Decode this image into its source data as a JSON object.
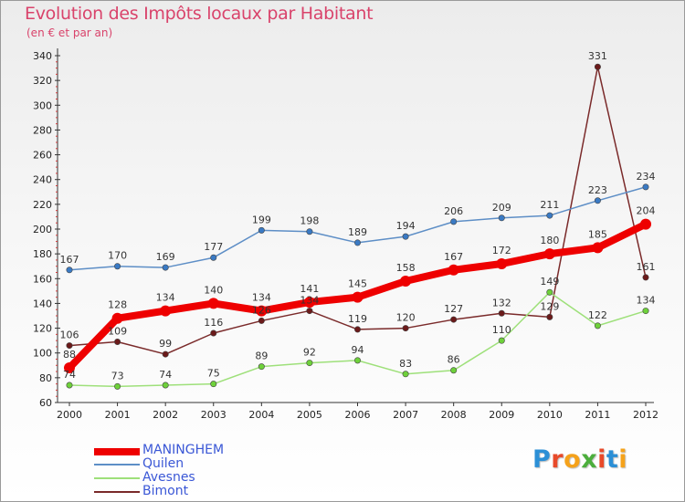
{
  "title": "Evolution des Impôts locaux par Habitant",
  "subtitle": "(en € et par an)",
  "logo": {
    "text": "Proxiti",
    "colors": [
      "#2b8fd6",
      "#e84a2a",
      "#f5a21b",
      "#4cae3c",
      "#e84a2a",
      "#2b8fd6",
      "#f5a21b"
    ]
  },
  "chart_data": {
    "type": "line",
    "title": "Evolution des Impôts locaux par Habitant",
    "subtitle": "(en € et par an)",
    "xlabel": "",
    "ylabel": "",
    "x": [
      "2000",
      "2001",
      "2002",
      "2003",
      "2004",
      "2005",
      "2006",
      "2007",
      "2008",
      "2009",
      "2010",
      "2011",
      "2012"
    ],
    "ylim": [
      60,
      340
    ],
    "yticks": [
      60,
      80,
      100,
      120,
      140,
      160,
      180,
      200,
      220,
      240,
      260,
      280,
      300,
      320,
      340
    ],
    "grid": false,
    "legend_position": "bottom-left",
    "series": [
      {
        "name": "MANINGHEM",
        "color": "#ee0000",
        "marker": "#ee0000",
        "values": [
          88,
          128,
          134,
          140,
          134,
          141,
          145,
          158,
          167,
          172,
          180,
          185,
          204
        ]
      },
      {
        "name": "Quilen",
        "color": "#5d8ec6",
        "marker": "#3a7ac4",
        "values": [
          167,
          170,
          169,
          177,
          199,
          198,
          189,
          194,
          206,
          209,
          211,
          223,
          234
        ]
      },
      {
        "name": "Avesnes",
        "color": "#9ee07a",
        "marker": "#6ed13a",
        "values": [
          74,
          73,
          74,
          75,
          89,
          92,
          94,
          83,
          86,
          110,
          149,
          122,
          134
        ]
      },
      {
        "name": "Bimont",
        "color": "#7a2a2a",
        "marker": "#6b1a1a",
        "values": [
          106,
          109,
          99,
          116,
          126,
          134,
          119,
          120,
          127,
          132,
          129,
          331,
          161
        ]
      }
    ],
    "labels": [
      [
        "88",
        "128",
        "134",
        "140",
        "134",
        "141",
        "145",
        "158",
        "167",
        "172",
        "180",
        "185",
        "204"
      ],
      [
        "167",
        "170",
        "169",
        "177",
        "199",
        "198",
        "189",
        "194",
        "206",
        "209",
        "211",
        "223",
        "234"
      ],
      [
        "74",
        "73",
        "74",
        "75",
        "89",
        "92",
        "94",
        "83",
        "86",
        "110",
        "149",
        "122",
        "134"
      ],
      [
        "106",
        "109",
        "99",
        "116",
        "126",
        "134",
        "119",
        "120",
        "127",
        "132",
        "129",
        "331",
        "161"
      ]
    ]
  }
}
